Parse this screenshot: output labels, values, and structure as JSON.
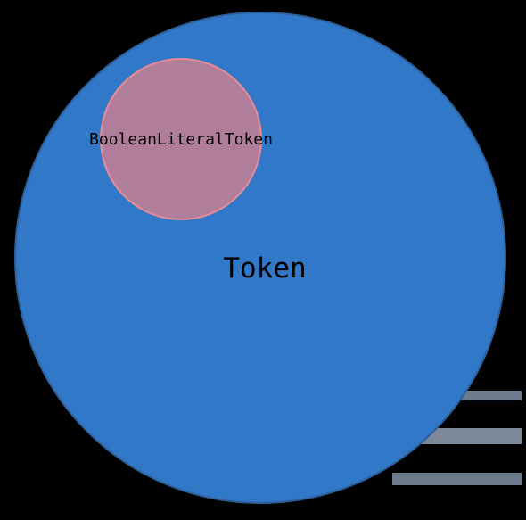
{
  "diagram": {
    "type": "venn",
    "outer": {
      "label": "Token",
      "fill": "#3178c8",
      "stroke": "#2f5f99"
    },
    "inner": {
      "label": "BooleanLiteralToken",
      "fill": "#b07d9a",
      "stroke": "#e58c96"
    }
  },
  "colors": {
    "background": "#000000",
    "text": "#000000"
  }
}
